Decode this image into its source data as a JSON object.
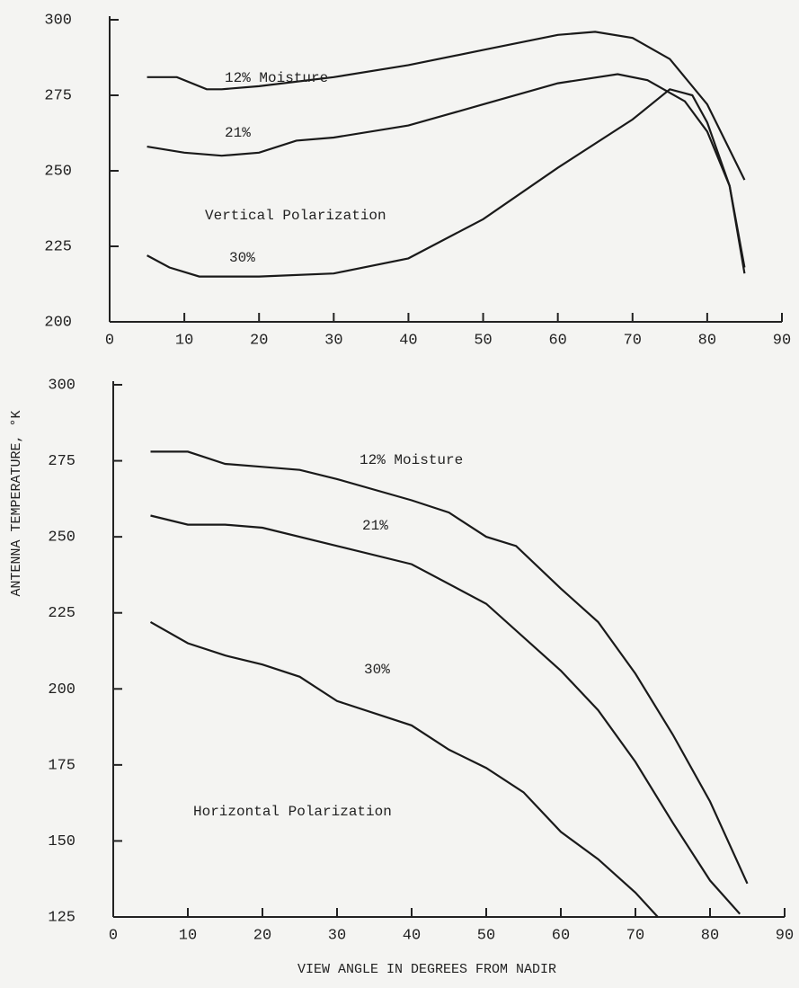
{
  "ylabel": "ANTENNA TEMPERATURE, °K",
  "xlabel": "VIEW ANGLE IN DEGREES FROM NADIR",
  "chart_data": [
    {
      "type": "line",
      "annotations": [
        "12% Moisture",
        "21%",
        "Vertical Polarization",
        "30%"
      ],
      "xlim": [
        0,
        90
      ],
      "xticks": [
        0,
        10,
        20,
        30,
        40,
        50,
        60,
        70,
        80,
        90
      ],
      "ylim": [
        200,
        300
      ],
      "yticks": [
        200,
        225,
        250,
        275,
        300
      ],
      "series": [
        {
          "color": "#1a1a1a",
          "x": [
            5,
            9,
            13,
            15,
            20,
            30,
            40,
            50,
            60,
            65,
            70,
            75,
            80,
            85
          ],
          "values": [
            281,
            281,
            277,
            277,
            278,
            281,
            285,
            290,
            295,
            296,
            294,
            287,
            272,
            247
          ]
        },
        {
          "color": "#1a1a1a",
          "x": [
            5,
            10,
            15,
            20,
            25,
            30,
            40,
            50,
            60,
            68,
            72,
            77,
            80,
            83,
            85
          ],
          "values": [
            258,
            256,
            255,
            256,
            260,
            261,
            265,
            272,
            279,
            282,
            280,
            273,
            263,
            245,
            218
          ]
        },
        {
          "color": "#1a1a1a",
          "x": [
            5,
            8,
            12,
            20,
            30,
            40,
            50,
            60,
            70,
            75,
            78,
            80,
            83,
            85
          ],
          "values": [
            222,
            218,
            215,
            215,
            216,
            221,
            234,
            251,
            267,
            277,
            275,
            266,
            245,
            216
          ]
        }
      ]
    },
    {
      "type": "line",
      "annotations": [
        "12% Moisture",
        "21%",
        "30%",
        "Horizontal Polarization"
      ],
      "xlim": [
        0,
        90
      ],
      "xticks": [
        0,
        10,
        20,
        30,
        40,
        50,
        60,
        70,
        80,
        90
      ],
      "ylim": [
        125,
        300
      ],
      "yticks": [
        125,
        150,
        175,
        200,
        225,
        250,
        275,
        300
      ],
      "series": [
        {
          "color": "#1a1a1a",
          "x": [
            5,
            10,
            15,
            20,
            25,
            30,
            40,
            45,
            50,
            54,
            60,
            65,
            70,
            75,
            80,
            85
          ],
          "values": [
            278,
            278,
            274,
            273,
            272,
            269,
            262,
            258,
            250,
            247,
            233,
            222,
            205,
            185,
            163,
            136
          ]
        },
        {
          "color": "#1a1a1a",
          "x": [
            5,
            10,
            15,
            20,
            30,
            40,
            50,
            60,
            65,
            70,
            75,
            80,
            84
          ],
          "values": [
            257,
            254,
            254,
            253,
            247,
            241,
            228,
            206,
            193,
            176,
            156,
            137,
            126
          ]
        },
        {
          "color": "#1a1a1a",
          "x": [
            5,
            10,
            15,
            20,
            25,
            30,
            40,
            45,
            50,
            55,
            60,
            65,
            70,
            73
          ],
          "values": [
            222,
            215,
            211,
            208,
            204,
            196,
            188,
            180,
            174,
            166,
            153,
            144,
            133,
            125
          ]
        }
      ]
    }
  ]
}
